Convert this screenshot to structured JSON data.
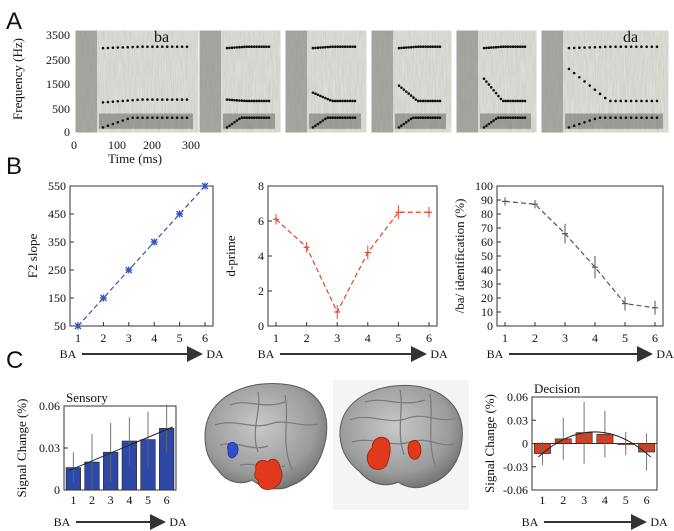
{
  "panels": {
    "a": "A",
    "b": "B",
    "c": "C"
  },
  "spectrograms": {
    "ylabel": "Frequency (Hz)",
    "xlabel": "Time (ms)",
    "yticks": [
      "3500",
      "2500",
      "1500",
      "500",
      "0"
    ],
    "xticks": [
      "0",
      "100",
      "200",
      "300"
    ],
    "first_label": "ba",
    "last_label": "da",
    "count": 6,
    "f2_onset_hz": [
      3050,
      1200,
      1450,
      1700,
      1950,
      2300
    ]
  },
  "continuum": {
    "start": "BA",
    "end": "DA"
  },
  "chart_data": [
    {
      "type": "line",
      "id": "f2-slope",
      "ylabel": "F2 slope",
      "x": [
        1,
        2,
        3,
        4,
        5,
        6
      ],
      "y": [
        50,
        150,
        250,
        350,
        450,
        550
      ],
      "ylim": [
        50,
        550
      ],
      "yticks": [
        50,
        150,
        250,
        350,
        450,
        550
      ],
      "color": "#3355bb"
    },
    {
      "type": "line",
      "id": "d-prime",
      "ylabel": "d-prime",
      "x": [
        1,
        2,
        3,
        4,
        5,
        6
      ],
      "y": [
        6.1,
        4.5,
        0.8,
        4.2,
        6.5,
        6.5
      ],
      "err": [
        0.3,
        0.3,
        0.4,
        0.4,
        0.4,
        0.3
      ],
      "ylim": [
        0,
        8
      ],
      "yticks": [
        0,
        2,
        4,
        6,
        8
      ],
      "color": "#e0452a"
    },
    {
      "type": "line",
      "id": "ba-identification",
      "ylabel": "/ba/ identification (%)",
      "x": [
        1,
        2,
        3,
        4,
        5,
        6
      ],
      "y": [
        89,
        87,
        66,
        42,
        16,
        13
      ],
      "err": [
        3,
        3,
        7,
        8,
        5,
        5
      ],
      "ylim": [
        0,
        100
      ],
      "yticks": [
        0,
        10,
        20,
        30,
        40,
        50,
        60,
        70,
        80,
        90,
        100
      ],
      "color": "#555555"
    },
    {
      "type": "bar",
      "id": "sensory",
      "title": "Sensory",
      "ylabel": "Signal Change (%)",
      "x": [
        1,
        2,
        3,
        4,
        5,
        6
      ],
      "y": [
        0.016,
        0.02,
        0.027,
        0.035,
        0.036,
        0.044
      ],
      "err": [
        0.011,
        0.02,
        0.021,
        0.017,
        0.02,
        0.017
      ],
      "ylim": [
        0,
        0.06
      ],
      "yticks": [
        0,
        0.03,
        0.06
      ],
      "ytick_labels": [
        "0",
        "0.03",
        "0.06"
      ],
      "color": "#2e48a8"
    },
    {
      "type": "bar",
      "id": "decision",
      "title": "Decision",
      "ylabel": "Signal Change (%)",
      "x": [
        1,
        2,
        3,
        4,
        5,
        6
      ],
      "y": [
        -0.013,
        0.006,
        0.014,
        0.012,
        0.0,
        -0.011
      ],
      "err": [
        0.015,
        0.027,
        0.04,
        0.03,
        0.015,
        0.024
      ],
      "ylim": [
        -0.06,
        0.06
      ],
      "yticks": [
        -0.06,
        -0.03,
        0,
        0.03,
        0.06
      ],
      "ytick_labels": [
        "-0.06",
        "-0.03",
        "0",
        "0.03",
        "0.06"
      ],
      "color": "#d4401f"
    }
  ]
}
